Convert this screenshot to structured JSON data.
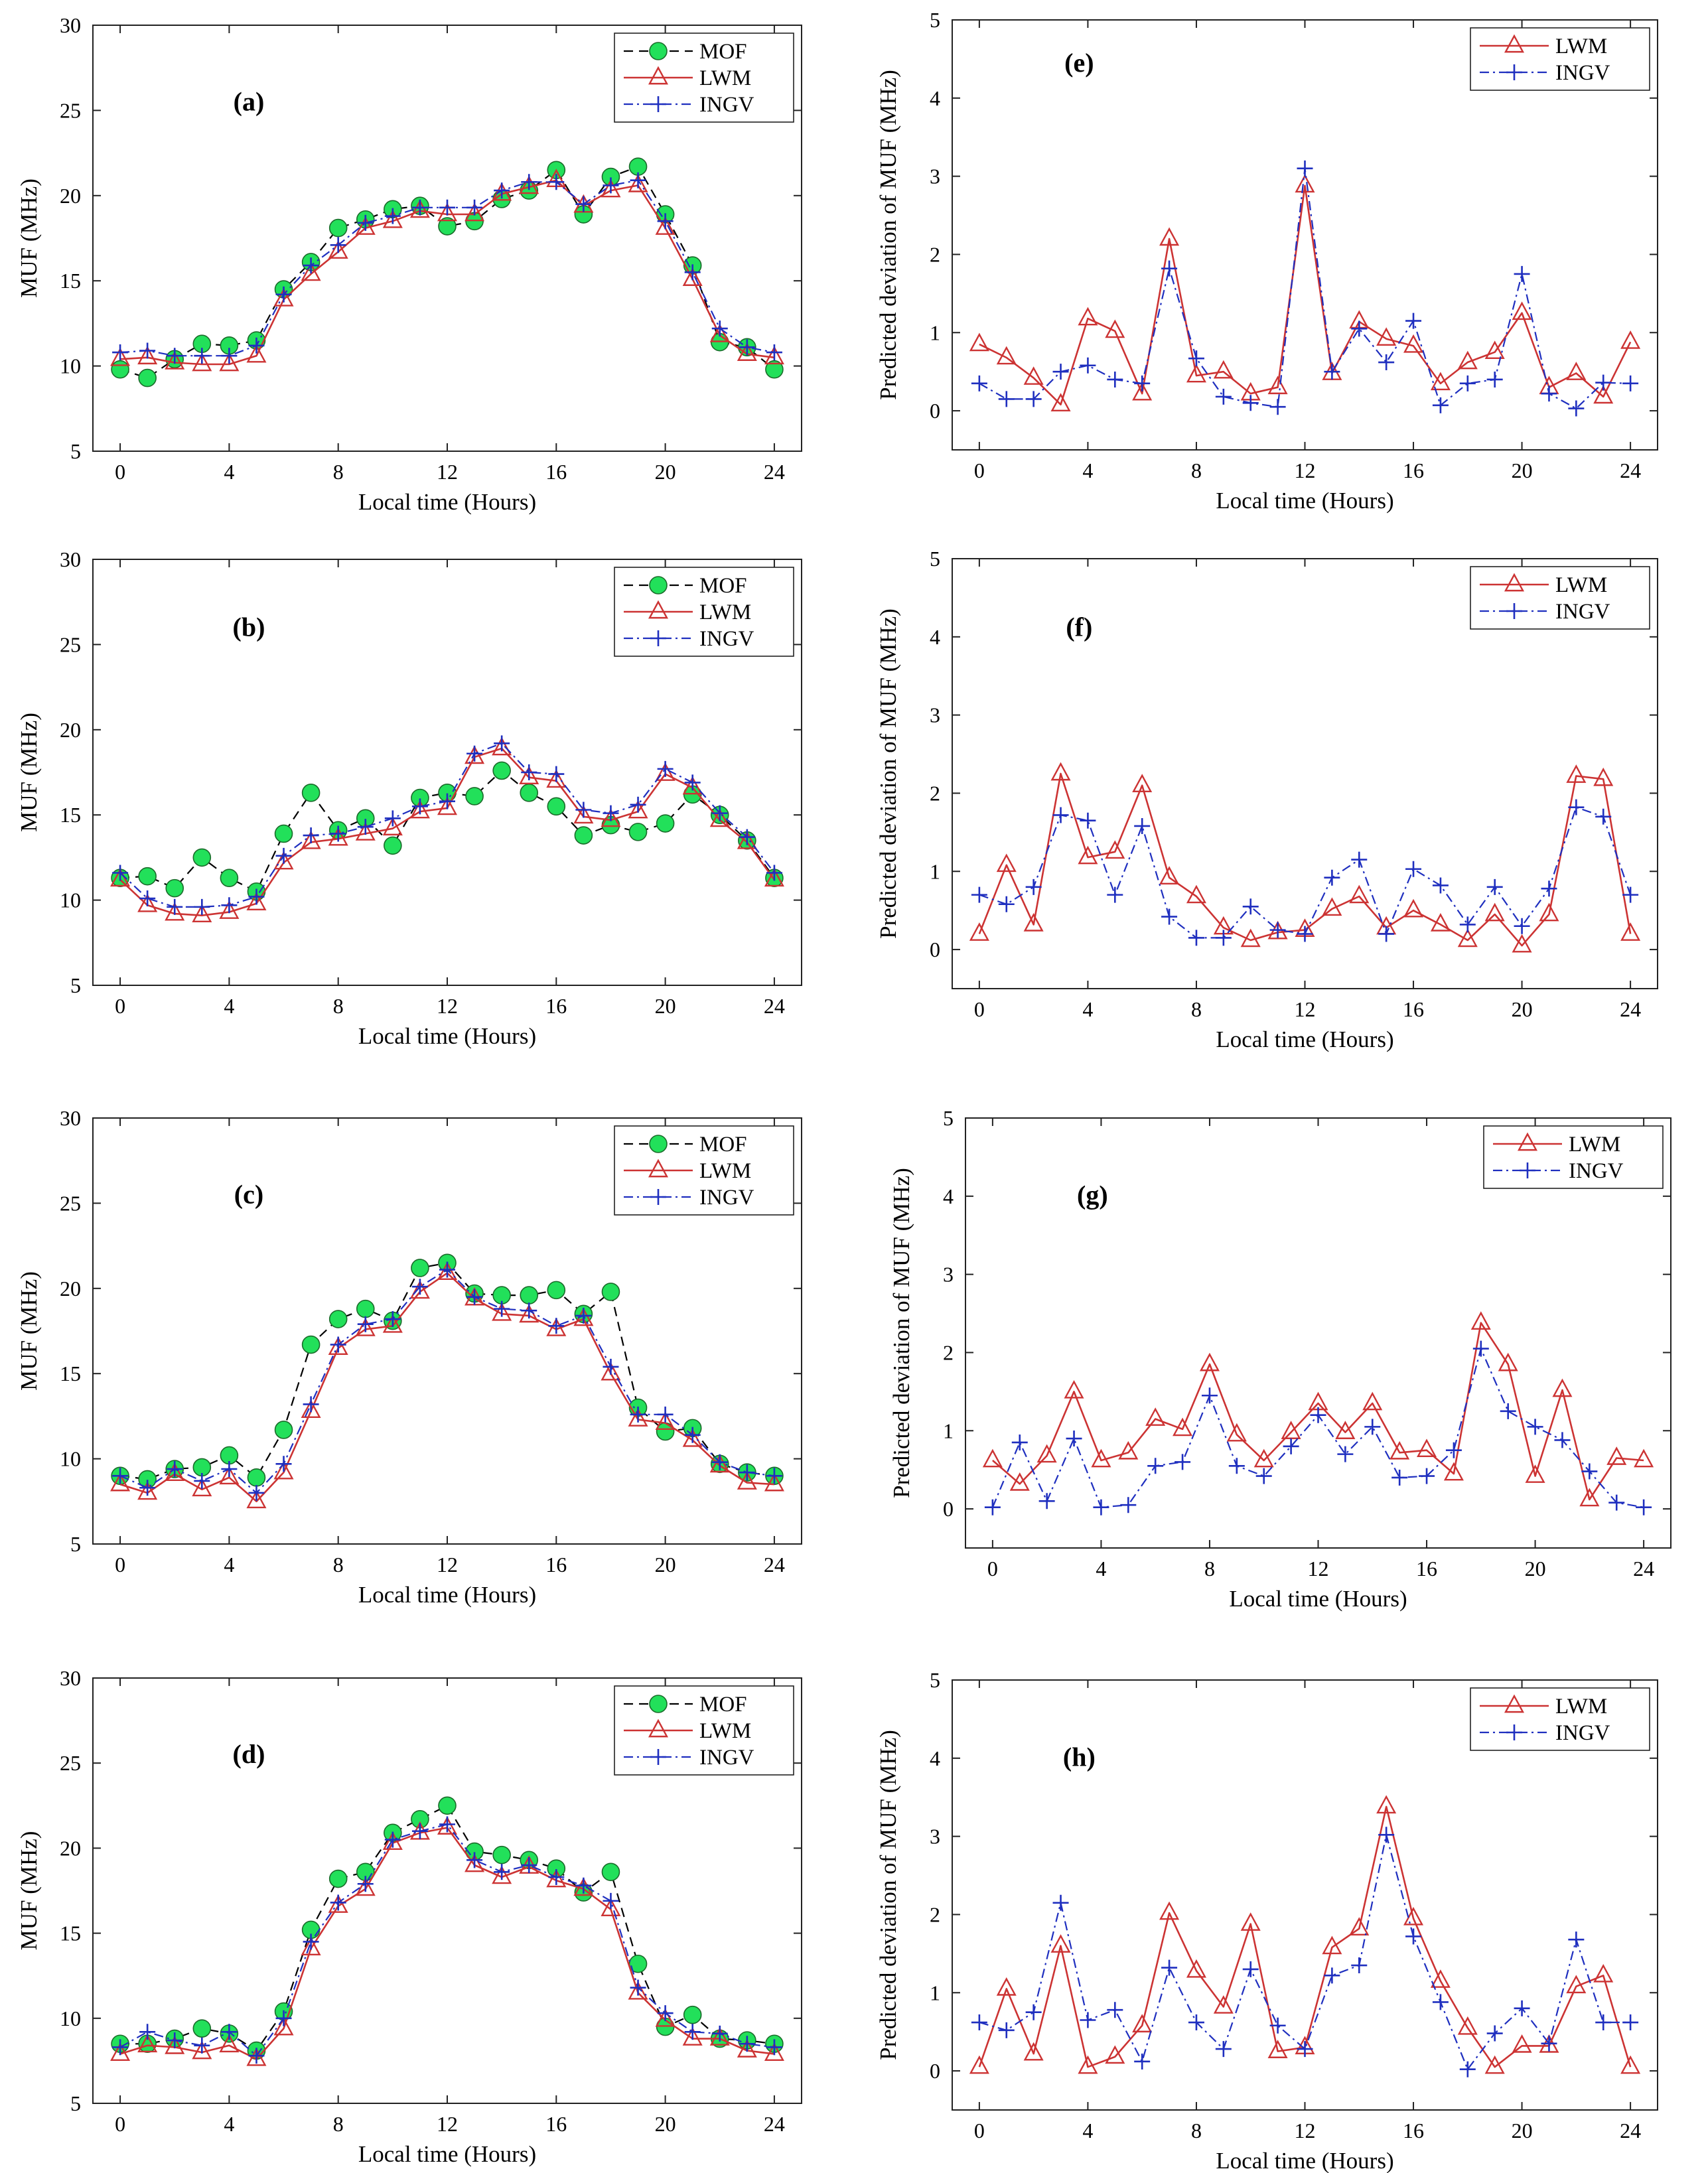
{
  "figure": "MUF comparison panels",
  "colors": {
    "mof_fill": "#22e05a",
    "mof_line": "#000000",
    "lwm": "#cc3333",
    "ingv": "#1f2fbf"
  },
  "chart_data": [
    {
      "id": "a",
      "type": "line",
      "panel_label": "(a)",
      "xlabel": "Local time (Hours)",
      "ylabel": "MUF (MHz)",
      "xlim": [
        -1,
        25
      ],
      "ylim": [
        5,
        30
      ],
      "xticks": [
        0,
        4,
        8,
        12,
        16,
        20,
        24
      ],
      "yticks": [
        5,
        10,
        15,
        20,
        25,
        30
      ],
      "x": [
        0,
        1,
        2,
        3,
        4,
        5,
        6,
        7,
        8,
        9,
        10,
        11,
        12,
        13,
        14,
        15,
        16,
        17,
        18,
        19,
        20,
        21,
        22,
        23,
        24
      ],
      "series": [
        {
          "name": "MOF",
          "style": "mof",
          "values": [
            9.8,
            9.3,
            10.4,
            11.3,
            11.2,
            11.5,
            14.5,
            16.1,
            18.1,
            18.6,
            19.2,
            19.4,
            18.2,
            18.5,
            19.8,
            20.3,
            21.5,
            18.9,
            21.1,
            21.7,
            18.9,
            15.9,
            11.4,
            11.1,
            9.8
          ]
        },
        {
          "name": "LWM",
          "style": "lwm",
          "values": [
            10.4,
            10.5,
            10.2,
            10.1,
            10.1,
            10.6,
            13.9,
            15.4,
            16.7,
            18.1,
            18.5,
            19.1,
            18.9,
            18.9,
            20.1,
            20.5,
            20.9,
            19.4,
            20.3,
            20.6,
            18.1,
            15.1,
            11.8,
            10.7,
            10.5
          ]
        },
        {
          "name": "INGV",
          "style": "ingv",
          "values": [
            10.8,
            10.9,
            10.6,
            10.6,
            10.6,
            11.2,
            14.2,
            15.9,
            17.1,
            18.4,
            18.8,
            19.3,
            19.3,
            19.3,
            20.3,
            20.8,
            20.8,
            19.5,
            20.6,
            20.9,
            18.5,
            15.5,
            12.2,
            11.1,
            10.8
          ]
        }
      ]
    },
    {
      "id": "b",
      "type": "line",
      "panel_label": "(b)",
      "xlabel": "Local time (Hours)",
      "ylabel": "MUF (MHz)",
      "xlim": [
        -1,
        25
      ],
      "ylim": [
        5,
        30
      ],
      "xticks": [
        0,
        4,
        8,
        12,
        16,
        20,
        24
      ],
      "yticks": [
        5,
        10,
        15,
        20,
        25,
        30
      ],
      "x": [
        0,
        1,
        2,
        3,
        4,
        5,
        6,
        7,
        8,
        9,
        10,
        11,
        12,
        13,
        14,
        15,
        16,
        17,
        18,
        19,
        20,
        21,
        22,
        23,
        24
      ],
      "series": [
        {
          "name": "MOF",
          "style": "mof",
          "values": [
            11.3,
            11.4,
            10.7,
            12.5,
            11.3,
            10.5,
            13.9,
            16.3,
            14.1,
            14.8,
            13.2,
            16,
            16.3,
            16.1,
            17.6,
            16.3,
            15.5,
            13.8,
            14.4,
            14,
            14.5,
            16.2,
            15,
            13.5,
            11.3
          ]
        },
        {
          "name": "LWM",
          "style": "lwm",
          "values": [
            11.2,
            9.7,
            9.2,
            9.1,
            9.3,
            9.8,
            12.2,
            13.4,
            13.6,
            13.9,
            14.2,
            15.2,
            15.4,
            18.4,
            18.9,
            17.2,
            17,
            14.9,
            14.7,
            15.2,
            17.4,
            16.6,
            14.7,
            13.4,
            11.2
          ]
        },
        {
          "name": "INGV",
          "style": "ingv",
          "values": [
            11.6,
            10.1,
            9.6,
            9.6,
            9.7,
            10.2,
            12.6,
            13.8,
            13.9,
            14.3,
            14.8,
            15.5,
            15.8,
            18.6,
            19.2,
            17.5,
            17.4,
            15.3,
            15.1,
            15.6,
            17.7,
            16.9,
            15.1,
            13.7,
            11.6
          ]
        }
      ]
    },
    {
      "id": "c",
      "type": "line",
      "panel_label": "(c)",
      "xlabel": "Local time (Hours)",
      "ylabel": "MUF (MHz)",
      "xlim": [
        -1,
        25
      ],
      "ylim": [
        5,
        30
      ],
      "xticks": [
        0,
        4,
        8,
        12,
        16,
        20,
        24
      ],
      "yticks": [
        5,
        10,
        15,
        20,
        25,
        30
      ],
      "x": [
        0,
        1,
        2,
        3,
        4,
        5,
        6,
        7,
        8,
        9,
        10,
        11,
        12,
        13,
        14,
        15,
        16,
        17,
        18,
        19,
        20,
        21,
        22,
        23,
        24
      ],
      "series": [
        {
          "name": "MOF",
          "style": "mof",
          "values": [
            9,
            8.8,
            9.4,
            9.5,
            10.2,
            8.9,
            11.7,
            16.7,
            18.2,
            18.8,
            18.1,
            21.2,
            21.5,
            19.7,
            19.6,
            19.6,
            19.9,
            18.5,
            19.8,
            13,
            11.6,
            11.8,
            9.7,
            9.2,
            9
          ]
        },
        {
          "name": "LWM",
          "style": "lwm",
          "values": [
            8.5,
            8,
            9.1,
            8.2,
            8.9,
            7.5,
            9.2,
            12.8,
            16.5,
            17.6,
            17.8,
            19.8,
            20.9,
            19.4,
            18.5,
            18.4,
            17.6,
            18.2,
            15,
            12.3,
            12.1,
            11.1,
            9.6,
            8.6,
            8.5
          ]
        },
        {
          "name": "INGV",
          "style": "ingv",
          "values": [
            9,
            8.3,
            9.4,
            8.7,
            9.4,
            8,
            9.7,
            13.2,
            16.7,
            17.9,
            18.2,
            20.1,
            21.1,
            19.5,
            18.8,
            18.7,
            17.8,
            18.4,
            15.4,
            12.6,
            12.6,
            11.4,
            9.8,
            9.2,
            9
          ]
        }
      ]
    },
    {
      "id": "d",
      "type": "line",
      "panel_label": "(d)",
      "xlabel": "Local time (Hours)",
      "ylabel": "MUF (MHz)",
      "xlim": [
        -1,
        25
      ],
      "ylim": [
        5,
        30
      ],
      "xticks": [
        0,
        4,
        8,
        12,
        16,
        20,
        24
      ],
      "yticks": [
        5,
        10,
        15,
        20,
        25,
        30
      ],
      "x": [
        0,
        1,
        2,
        3,
        4,
        5,
        6,
        7,
        8,
        9,
        10,
        11,
        12,
        13,
        14,
        15,
        16,
        17,
        18,
        19,
        20,
        21,
        22,
        23,
        24
      ],
      "series": [
        {
          "name": "MOF",
          "style": "mof",
          "values": [
            8.5,
            8.5,
            8.8,
            9.4,
            9.1,
            8.1,
            10.4,
            15.2,
            18.2,
            18.6,
            20.9,
            21.7,
            22.5,
            19.8,
            19.6,
            19.3,
            18.8,
            17.4,
            18.6,
            13.2,
            9.5,
            10.2,
            8.8,
            8.7,
            8.5
          ]
        },
        {
          "name": "LWM",
          "style": "lwm",
          "values": [
            7.9,
            8.4,
            8.3,
            8,
            8.4,
            7.6,
            9.4,
            14.1,
            16.6,
            17.6,
            20.3,
            20.9,
            21.2,
            19,
            18.3,
            18.9,
            18.1,
            17.6,
            16.4,
            11.5,
            9.9,
            8.8,
            8.8,
            8.1,
            7.9
          ]
        },
        {
          "name": "INGV",
          "style": "ingv",
          "values": [
            8.3,
            9.2,
            8.7,
            8.4,
            9.2,
            7.8,
            10,
            14.5,
            16.8,
            17.9,
            20.5,
            21,
            21.4,
            19.3,
            18.6,
            19,
            18.3,
            17.8,
            16.9,
            11.8,
            10.3,
            9.2,
            9.1,
            8.5,
            8.3
          ]
        }
      ]
    },
    {
      "id": "e",
      "type": "line",
      "panel_label": "(e)",
      "xlabel": "Local time (Hours)",
      "ylabel": "Predicted deviation of MUF (MHz)",
      "xlim": [
        -1,
        25
      ],
      "ylim": [
        -0.5,
        5
      ],
      "xticks": [
        0,
        4,
        8,
        12,
        16,
        20,
        24
      ],
      "yticks": [
        0,
        1,
        2,
        3,
        4,
        5
      ],
      "x": [
        0,
        1,
        2,
        3,
        4,
        5,
        6,
        7,
        8,
        9,
        10,
        11,
        12,
        13,
        14,
        15,
        16,
        17,
        18,
        19,
        20,
        21,
        22,
        23,
        24
      ],
      "series": [
        {
          "name": "LWM",
          "style": "lwm",
          "values": [
            0.85,
            0.68,
            0.42,
            0.08,
            1.18,
            1.02,
            0.22,
            2.2,
            0.45,
            0.5,
            0.22,
            0.3,
            2.88,
            0.48,
            1.14,
            0.92,
            0.83,
            0.35,
            0.62,
            0.75,
            1.25,
            0.3,
            0.48,
            0.18,
            0.88
          ]
        },
        {
          "name": "INGV",
          "style": "ingv",
          "values": [
            0.35,
            0.15,
            0.15,
            0.5,
            0.58,
            0.4,
            0.35,
            1.82,
            0.67,
            0.18,
            0.1,
            0.05,
            3.1,
            0.5,
            1.05,
            0.62,
            1.15,
            0.07,
            0.35,
            0.4,
            1.75,
            0.22,
            0.03,
            0.36,
            0.35
          ]
        }
      ]
    },
    {
      "id": "f",
      "type": "line",
      "panel_label": "(f)",
      "xlabel": "Local time (Hours)",
      "ylabel": "Predicted deviation of MUF (MHz)",
      "xlim": [
        -1,
        25
      ],
      "ylim": [
        -0.5,
        5
      ],
      "xticks": [
        0,
        4,
        8,
        12,
        16,
        20,
        24
      ],
      "yticks": [
        0,
        1,
        2,
        3,
        4,
        5
      ],
      "x": [
        0,
        1,
        2,
        3,
        4,
        5,
        6,
        7,
        8,
        9,
        10,
        11,
        12,
        13,
        14,
        15,
        16,
        17,
        18,
        19,
        20,
        21,
        22,
        23,
        24
      ],
      "series": [
        {
          "name": "LWM",
          "style": "lwm",
          "values": [
            0.2,
            1.08,
            0.32,
            2.25,
            1.18,
            1.25,
            2.1,
            0.92,
            0.68,
            0.28,
            0.12,
            0.22,
            0.25,
            0.52,
            0.68,
            0.28,
            0.5,
            0.32,
            0.12,
            0.45,
            0.05,
            0.45,
            2.22,
            2.18,
            0.2
          ]
        },
        {
          "name": "INGV",
          "style": "ingv",
          "values": [
            0.7,
            0.58,
            0.8,
            1.72,
            1.65,
            0.7,
            1.58,
            0.42,
            0.15,
            0.15,
            0.55,
            0.25,
            0.2,
            0.92,
            1.15,
            0.2,
            1.03,
            0.82,
            0.32,
            0.8,
            0.3,
            0.78,
            1.82,
            1.7,
            0.7
          ]
        }
      ]
    },
    {
      "id": "g",
      "type": "line",
      "panel_label": "(g)",
      "xlabel": "Local time (Hours)",
      "ylabel": "Predicted deviation of MUF (MHz)",
      "xlim": [
        -1,
        25
      ],
      "ylim": [
        -0.5,
        5
      ],
      "xticks": [
        0,
        4,
        8,
        12,
        16,
        20,
        24
      ],
      "yticks": [
        0,
        1,
        2,
        3,
        4,
        5
      ],
      "x": [
        0,
        1,
        2,
        3,
        4,
        5,
        6,
        7,
        8,
        9,
        10,
        11,
        12,
        13,
        14,
        15,
        16,
        17,
        18,
        19,
        20,
        21,
        22,
        23,
        24
      ],
      "series": [
        {
          "name": "LWM",
          "style": "lwm",
          "values": [
            0.62,
            0.32,
            0.68,
            1.5,
            0.62,
            0.72,
            1.15,
            1.02,
            1.85,
            0.95,
            0.62,
            0.98,
            1.35,
            0.98,
            1.35,
            0.72,
            0.75,
            0.45,
            2.38,
            1.85,
            0.42,
            1.52,
            0.12,
            0.65,
            0.62
          ]
        },
        {
          "name": "INGV",
          "style": "ingv",
          "values": [
            0.02,
            0.85,
            0.1,
            0.9,
            0.02,
            0.05,
            0.55,
            0.6,
            1.45,
            0.55,
            0.42,
            0.8,
            1.2,
            0.7,
            1.05,
            0.4,
            0.42,
            0.75,
            2.05,
            1.25,
            1.05,
            0.88,
            0.48,
            0.08,
            0.02
          ]
        }
      ]
    },
    {
      "id": "h",
      "type": "line",
      "panel_label": "(h)",
      "xlabel": "Local time (Hours)",
      "ylabel": "Predicted deviation of MUF (MHz)",
      "xlim": [
        -1,
        25
      ],
      "ylim": [
        -0.5,
        5
      ],
      "xticks": [
        0,
        4,
        8,
        12,
        16,
        20,
        24
      ],
      "yticks": [
        0,
        1,
        2,
        3,
        4,
        5
      ],
      "x": [
        0,
        1,
        2,
        3,
        4,
        5,
        6,
        7,
        8,
        9,
        10,
        11,
        12,
        13,
        14,
        15,
        16,
        17,
        18,
        19,
        20,
        21,
        22,
        23,
        24
      ],
      "series": [
        {
          "name": "LWM",
          "style": "lwm",
          "values": [
            0.05,
            1.05,
            0.22,
            1.6,
            0.05,
            0.18,
            0.58,
            2.02,
            1.28,
            0.82,
            1.88,
            0.25,
            0.3,
            1.58,
            1.82,
            3.38,
            1.95,
            1.15,
            0.55,
            0.05,
            0.32,
            0.32,
            1.08,
            1.22,
            0.05
          ]
        },
        {
          "name": "INGV",
          "style": "ingv",
          "values": [
            0.62,
            0.52,
            0.75,
            2.15,
            0.65,
            0.78,
            0.12,
            1.32,
            0.62,
            0.28,
            1.3,
            0.58,
            0.28,
            1.22,
            1.35,
            3.02,
            1.72,
            0.88,
            0.02,
            0.48,
            0.8,
            0.35,
            1.68,
            0.62,
            0.62
          ]
        }
      ]
    }
  ]
}
